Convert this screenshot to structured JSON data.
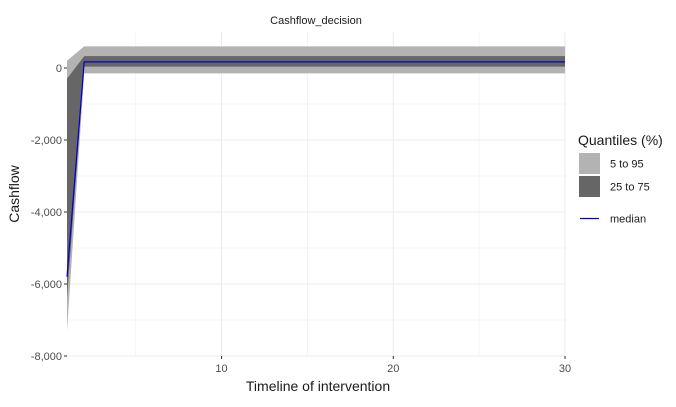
{
  "chart_data": {
    "type": "area",
    "title": "Cashflow_decision",
    "xlabel": "Timeline of intervention",
    "ylabel": "Cashflow",
    "xlim": [
      1,
      30
    ],
    "ylim": [
      -8000,
      1000
    ],
    "x_ticks": [
      {
        "value": 10,
        "label": "10"
      },
      {
        "value": 20,
        "label": "20"
      },
      {
        "value": 30,
        "label": "30"
      }
    ],
    "y_ticks": [
      {
        "value": 0,
        "label": "0"
      },
      {
        "value": -2000,
        "label": "-2,000"
      },
      {
        "value": -4000,
        "label": "-4,000"
      },
      {
        "value": -6000,
        "label": "-6,000"
      },
      {
        "value": -8000,
        "label": "-8,000"
      }
    ],
    "x": [
      1,
      2,
      30
    ],
    "series": [
      {
        "name": "5 to 95",
        "lower": [
          -7300,
          -150,
          -150
        ],
        "upper": [
          200,
          600,
          600
        ],
        "color": "#b3b3b3"
      },
      {
        "name": "25 to 75",
        "lower": [
          -6400,
          40,
          40
        ],
        "upper": [
          -300,
          330,
          330
        ],
        "color": "#666666"
      },
      {
        "name": "median",
        "values": [
          -5800,
          170,
          170
        ],
        "color": "#0000cc"
      }
    ],
    "legend": {
      "title": "Quantiles (%)",
      "position": "right",
      "items": [
        {
          "label": "5 to 95",
          "kind": "band",
          "color": "#b3b3b3"
        },
        {
          "label": "25 to 75",
          "kind": "band",
          "color": "#666666"
        },
        {
          "label": "median",
          "kind": "line",
          "color": "#0000cc"
        }
      ]
    },
    "grid": true
  }
}
